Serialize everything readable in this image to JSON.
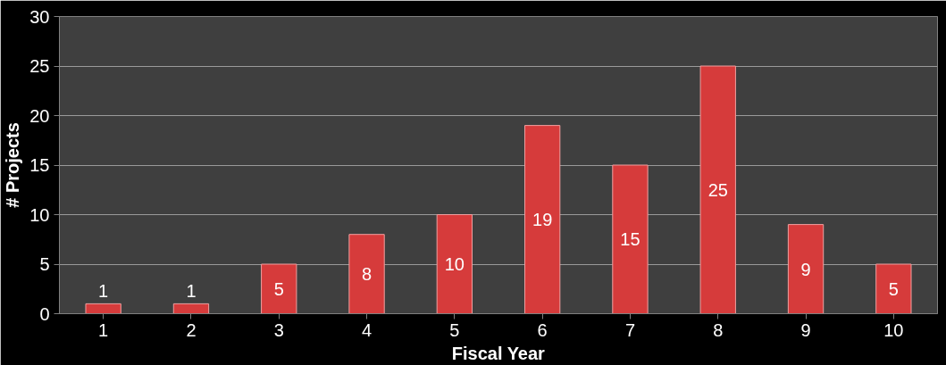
{
  "chart_data": {
    "type": "bar",
    "xlabel": "Fiscal Year",
    "ylabel": "# Projects",
    "categories": [
      "1",
      "2",
      "3",
      "4",
      "5",
      "6",
      "7",
      "8",
      "9",
      "10"
    ],
    "values": [
      1,
      1,
      5,
      8,
      10,
      19,
      15,
      25,
      9,
      5
    ],
    "color": "#d63b3b",
    "ylim": [
      0,
      30
    ],
    "yticks": [
      0,
      5,
      10,
      15,
      20,
      25,
      30
    ],
    "grid": "y",
    "data_labels": true
  }
}
